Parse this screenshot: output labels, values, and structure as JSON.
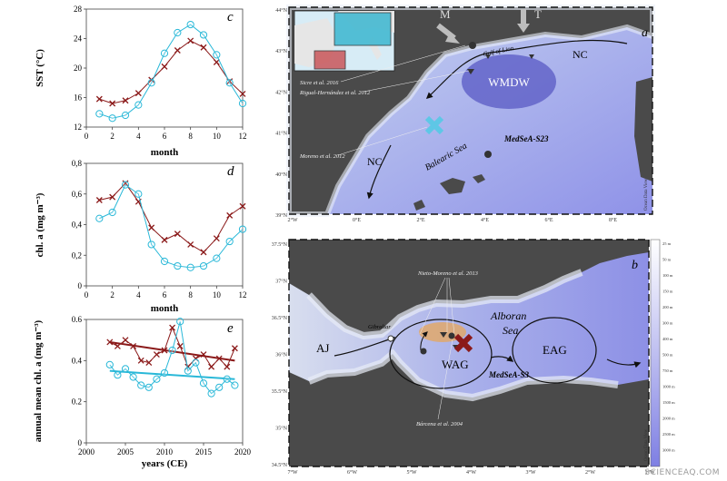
{
  "chart_data": [
    {
      "type": "line",
      "panel_label": "c",
      "xlabel": "month",
      "ylabel": "SST (°C)",
      "xlim": [
        0,
        12
      ],
      "ylim": [
        12,
        28
      ],
      "xticks": [
        0,
        2,
        4,
        6,
        8,
        10,
        12
      ],
      "yticks": [
        12,
        16,
        20,
        24,
        28
      ],
      "x": [
        1,
        2,
        3,
        4,
        5,
        6,
        7,
        8,
        9,
        10,
        11,
        12
      ],
      "series": [
        {
          "values": [
            15.8,
            15.2,
            15.6,
            16.6,
            18.4,
            20.2,
            22.4,
            23.7,
            22.8,
            20.8,
            18.2,
            16.5
          ],
          "color": "#8b1a1a",
          "marker": "x"
        },
        {
          "values": [
            13.8,
            13.2,
            13.6,
            15.0,
            18.0,
            22.0,
            24.8,
            25.9,
            24.5,
            21.8,
            18.0,
            15.2
          ],
          "color": "#29b8d8",
          "marker": "o"
        }
      ]
    },
    {
      "type": "line",
      "panel_label": "d",
      "xlabel": "month",
      "ylabel": "chl. a (mg m⁻³)",
      "xlim": [
        0,
        12
      ],
      "ylim": [
        0,
        0.8
      ],
      "xticks": [
        0,
        2,
        4,
        6,
        8,
        10,
        12
      ],
      "yticks": [
        0,
        0.2,
        0.4,
        0.6,
        0.8
      ],
      "ytick_labels": [
        "0",
        "0,2",
        "0,4",
        "0,6",
        "0,8"
      ],
      "x": [
        1,
        2,
        3,
        4,
        5,
        6,
        7,
        8,
        9,
        10,
        11,
        12
      ],
      "series": [
        {
          "values": [
            0.56,
            0.58,
            0.67,
            0.55,
            0.38,
            0.3,
            0.34,
            0.27,
            0.22,
            0.31,
            0.46,
            0.52
          ],
          "color": "#8b1a1a",
          "marker": "x"
        },
        {
          "values": [
            0.44,
            0.48,
            0.66,
            0.6,
            0.27,
            0.16,
            0.13,
            0.12,
            0.13,
            0.18,
            0.29,
            0.37
          ],
          "color": "#29b8d8",
          "marker": "o"
        }
      ]
    },
    {
      "type": "line",
      "panel_label": "e",
      "xlabel": "years (CE)",
      "ylabel": "annual mean chl. a (mg m⁻³)",
      "xlim": [
        2000,
        2020
      ],
      "ylim": [
        0,
        0.6
      ],
      "xticks": [
        2000,
        2005,
        2010,
        2015,
        2020
      ],
      "yticks": [
        0,
        0.2,
        0.4,
        0.6
      ],
      "ytick_labels": [
        "0",
        "0.2",
        "0.4",
        "0.6"
      ],
      "x": [
        2003,
        2004,
        2005,
        2006,
        2007,
        2008,
        2009,
        2010,
        2011,
        2012,
        2013,
        2014,
        2015,
        2016,
        2017,
        2018,
        2019
      ],
      "series": [
        {
          "values": [
            0.49,
            0.47,
            0.5,
            0.47,
            0.4,
            0.39,
            0.43,
            0.45,
            0.56,
            0.47,
            0.37,
            0.41,
            0.43,
            0.37,
            0.41,
            0.37,
            0.46
          ],
          "color": "#8b1a1a",
          "marker": "x"
        },
        {
          "values": [
            0.38,
            0.33,
            0.36,
            0.32,
            0.28,
            0.27,
            0.31,
            0.34,
            0.45,
            0.59,
            0.35,
            0.39,
            0.29,
            0.24,
            0.27,
            0.31,
            0.28
          ],
          "color": "#29b8d8",
          "marker": "o"
        }
      ],
      "trendlines": [
        {
          "from": [
            2003,
            0.49
          ],
          "to": [
            2019,
            0.4
          ],
          "color": "#8b1a1a"
        },
        {
          "from": [
            2003,
            0.35
          ],
          "to": [
            2019,
            0.31
          ],
          "color": "#29b8d8"
        }
      ]
    }
  ],
  "map_a": {
    "panel_label": "a",
    "lat_labels": [
      "44°N",
      "43°N",
      "42°N",
      "41°N",
      "40°N",
      "39°N"
    ],
    "lon_labels": [
      "2°W",
      "0°E",
      "2°E",
      "4°E",
      "6°E",
      "8°E"
    ],
    "labels": {
      "M": "M",
      "T": "T",
      "gulf": "Gulf of Lion",
      "nc_top": "NC",
      "wmdw": "WMDW",
      "balearic": "Balearic Sea",
      "nc_left": "NC",
      "core": "MedSeA-S23",
      "ref_siere": "Sicre et al. 2016",
      "ref_rigual": "Rigual-Hernández et al. 2012",
      "ref_moreno": "Moreno et al. 2012",
      "ocean_data_view": "Ocean Data View"
    }
  },
  "map_b": {
    "panel_label": "b",
    "lat_labels": [
      "37.5°N",
      "37°N",
      "36.5°N",
      "36°N",
      "35.5°N",
      "35°N",
      "34.5°N"
    ],
    "lon_labels": [
      "7°W",
      "6°W",
      "5°W",
      "4°W",
      "3°W",
      "2°W",
      "1°W"
    ],
    "depth_scale": [
      "25 m",
      "50 m",
      "100 m",
      "150 m",
      "200 m",
      "300 m",
      "400 m",
      "500 m",
      "750 m",
      "1000 m",
      "1500 m",
      "2000 m",
      "2500 m",
      "3000 m"
    ],
    "labels": {
      "aj": "AJ",
      "wag": "WAG",
      "eag": "EAG",
      "alboran": "Alboran",
      "sea": "Sea",
      "gibraltar": "Gibraltar",
      "core": "MedSeA-S3",
      "ref_nieto": "Nieto-Moreno et al. 2013",
      "ref_barcena": "Bárcena et al. 2004",
      "ocean_data_view": "Ocean Data View"
    }
  },
  "watermark": "SCIENCEAQ.COM"
}
